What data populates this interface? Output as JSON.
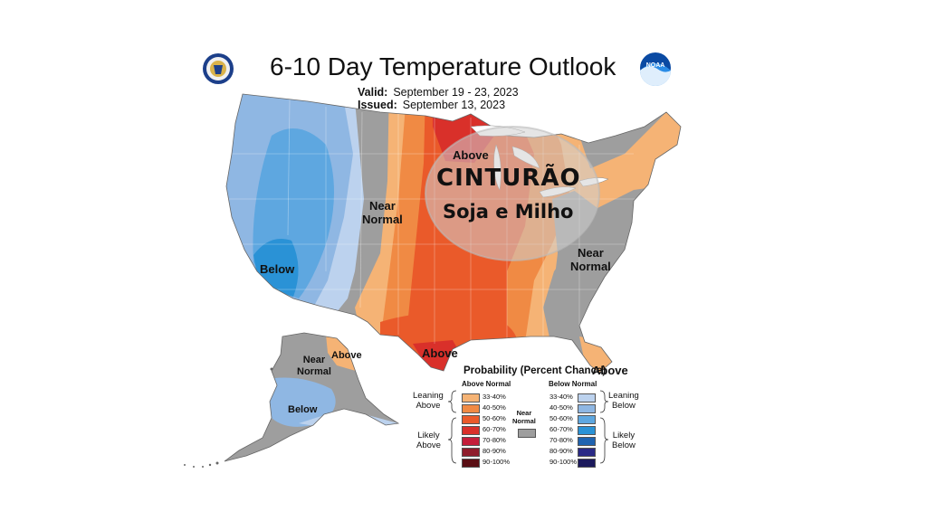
{
  "header": {
    "title": "6-10 Day Temperature Outlook",
    "valid_label": "Valid:",
    "valid_value": "September 19 - 23, 2023",
    "issued_label": "Issued:",
    "issued_value": "September 13, 2023",
    "left_logo_icon": "doc-seal-icon",
    "right_logo_icon": "noaa-logo-icon",
    "noaa_text": "NOAA"
  },
  "map_labels": {
    "above_north": "Above",
    "near_normal_west": "Near\nNormal",
    "below_west": "Below",
    "near_normal_east": "Near\nNormal",
    "above_texas": "Above",
    "above_florida": "Above",
    "alaska_near_normal": "Near\nNormal",
    "alaska_above": "Above",
    "alaska_below": "Below"
  },
  "overlay": {
    "line1": "CINTURÃO",
    "line2": "Soja e Milho"
  },
  "legend": {
    "title": "Probability (Percent Chance)",
    "above_header": "Above Normal",
    "below_header": "Below Normal",
    "near_label": "Near\nNormal",
    "leaning_above": "Leaning\nAbove",
    "likely_above": "Likely\nAbove",
    "leaning_below": "Leaning\nBelow",
    "likely_below": "Likely\nBelow",
    "above_levels": [
      {
        "pct": "33-40%",
        "color": "#f5b375"
      },
      {
        "pct": "40-50%",
        "color": "#f08a44"
      },
      {
        "pct": "50-60%",
        "color": "#ea5a2a"
      },
      {
        "pct": "60-70%",
        "color": "#d9302a"
      },
      {
        "pct": "70-80%",
        "color": "#c41e3a"
      },
      {
        "pct": "80-90%",
        "color": "#8f1d2c"
      },
      {
        "pct": "90-100%",
        "color": "#5a0e14"
      }
    ],
    "below_levels": [
      {
        "pct": "33-40%",
        "color": "#bcd2ee"
      },
      {
        "pct": "40-50%",
        "color": "#8fb7e3"
      },
      {
        "pct": "50-60%",
        "color": "#5ea7e0"
      },
      {
        "pct": "60-70%",
        "color": "#2a92d6"
      },
      {
        "pct": "70-80%",
        "color": "#1f63b0"
      },
      {
        "pct": "80-90%",
        "color": "#2a2a86"
      },
      {
        "pct": "90-100%",
        "color": "#1c1a5c"
      }
    ],
    "near_color": "#9e9e9e"
  }
}
